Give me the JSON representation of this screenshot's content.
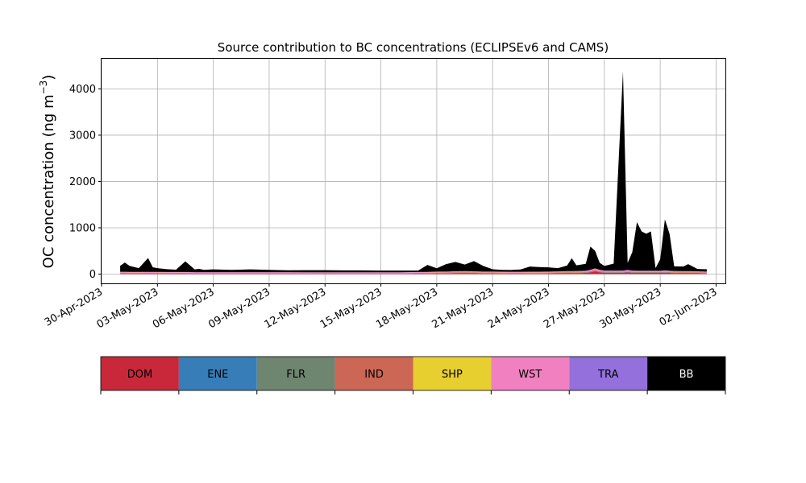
{
  "chart_data": {
    "type": "area",
    "title": "Source contribution to BC concentrations (ECLIPSEv6 and CAMS)",
    "ylabel": "OC concentration (ng m",
    "ylabel_sup": "−3",
    "ylabel_close": ")",
    "xlabel": "",
    "x_axis_type": "date",
    "xlim": [
      "2023-04-30T00:00",
      "2023-06-02T12:00"
    ],
    "ylim": [
      -200,
      4650
    ],
    "grid": true,
    "yticks": [
      0,
      1000,
      2000,
      3000,
      4000
    ],
    "ytick_labels": [
      "0",
      "1000",
      "2000",
      "3000",
      "4000"
    ],
    "xticks": [
      "2023-04-30",
      "2023-05-03",
      "2023-05-06",
      "2023-05-09",
      "2023-05-12",
      "2023-05-15",
      "2023-05-18",
      "2023-05-21",
      "2023-05-24",
      "2023-05-27",
      "2023-05-30",
      "2023-06-02"
    ],
    "xtick_labels": [
      "30-Apr-2023",
      "03-May-2023",
      "06-May-2023",
      "09-May-2023",
      "12-May-2023",
      "15-May-2023",
      "18-May-2023",
      "21-May-2023",
      "24-May-2023",
      "27-May-2023",
      "30-May-2023",
      "02-Jun-2023"
    ],
    "x": [
      "2023-05-01T00:00",
      "2023-05-01T06:00",
      "2023-05-01T12:00",
      "2023-05-02T00:00",
      "2023-05-02T12:00",
      "2023-05-02T18:00",
      "2023-05-03T00:00",
      "2023-05-03T12:00",
      "2023-05-04T00:00",
      "2023-05-04T12:00",
      "2023-05-05T00:00",
      "2023-05-05T06:00",
      "2023-05-05T12:00",
      "2023-05-06T00:00",
      "2023-05-07T00:00",
      "2023-05-08T00:00",
      "2023-05-09T00:00",
      "2023-05-10T00:00",
      "2023-05-11T00:00",
      "2023-05-12T00:00",
      "2023-05-13T00:00",
      "2023-05-14T00:00",
      "2023-05-15T00:00",
      "2023-05-16T00:00",
      "2023-05-17T00:00",
      "2023-05-17T12:00",
      "2023-05-18T00:00",
      "2023-05-18T12:00",
      "2023-05-19T00:00",
      "2023-05-19T12:00",
      "2023-05-20T00:00",
      "2023-05-20T12:00",
      "2023-05-21T00:00",
      "2023-05-21T12:00",
      "2023-05-22T00:00",
      "2023-05-22T12:00",
      "2023-05-23T00:00",
      "2023-05-23T12:00",
      "2023-05-24T00:00",
      "2023-05-24T12:00",
      "2023-05-25T00:00",
      "2023-05-25T06:00",
      "2023-05-25T12:00",
      "2023-05-26T00:00",
      "2023-05-26T06:00",
      "2023-05-26T12:00",
      "2023-05-26T18:00",
      "2023-05-27T00:00",
      "2023-05-27T12:00",
      "2023-05-28T00:00",
      "2023-05-28T06:00",
      "2023-05-28T12:00",
      "2023-05-28T18:00",
      "2023-05-29T00:00",
      "2023-05-29T06:00",
      "2023-05-29T12:00",
      "2023-05-29T18:00",
      "2023-05-30T00:00",
      "2023-05-30T06:00",
      "2023-05-30T12:00",
      "2023-05-30T18:00",
      "2023-05-31T00:00",
      "2023-05-31T06:00",
      "2023-05-31T12:00",
      "2023-06-01T00:00",
      "2023-06-01T12:00"
    ],
    "series": [
      {
        "name": "DOM",
        "color": "#c8283a",
        "values": [
          15,
          15,
          14,
          14,
          13,
          13,
          14,
          12,
          12,
          12,
          11,
          11,
          11,
          11,
          11,
          11,
          11,
          11,
          10,
          10,
          10,
          10,
          10,
          10,
          12,
          14,
          16,
          15,
          18,
          20,
          18,
          16,
          15,
          14,
          13,
          13,
          14,
          14,
          16,
          18,
          20,
          20,
          22,
          25,
          40,
          60,
          40,
          30,
          30,
          30,
          40,
          30,
          25,
          25,
          25,
          25,
          25,
          25,
          30,
          25,
          22,
          20,
          20,
          20,
          18,
          15
        ]
      },
      {
        "name": "ENE",
        "color": "#377eb8",
        "values": [
          5,
          5,
          5,
          5,
          5,
          5,
          5,
          5,
          5,
          5,
          4,
          4,
          4,
          4,
          4,
          4,
          4,
          4,
          4,
          4,
          4,
          4,
          4,
          4,
          4,
          4,
          5,
          5,
          5,
          5,
          5,
          5,
          5,
          5,
          5,
          5,
          5,
          5,
          5,
          5,
          5,
          5,
          5,
          5,
          5,
          5,
          5,
          5,
          5,
          5,
          5,
          5,
          5,
          5,
          5,
          5,
          5,
          5,
          5,
          5,
          5,
          5,
          5,
          5,
          5,
          5
        ]
      },
      {
        "name": "FLR",
        "color": "#6e8570",
        "values": [
          2,
          2,
          2,
          2,
          2,
          2,
          2,
          2,
          2,
          2,
          2,
          2,
          2,
          2,
          2,
          2,
          2,
          2,
          2,
          2,
          2,
          2,
          2,
          2,
          2,
          2,
          2,
          2,
          2,
          2,
          2,
          2,
          2,
          2,
          2,
          2,
          2,
          2,
          2,
          2,
          2,
          2,
          2,
          2,
          2,
          2,
          2,
          2,
          2,
          2,
          2,
          2,
          2,
          2,
          2,
          2,
          2,
          2,
          2,
          2,
          2,
          2,
          2,
          2,
          2,
          2
        ]
      },
      {
        "name": "IND",
        "color": "#cc6655",
        "values": [
          8,
          8,
          8,
          8,
          8,
          8,
          8,
          8,
          8,
          8,
          7,
          7,
          7,
          7,
          7,
          7,
          7,
          7,
          7,
          7,
          7,
          7,
          7,
          7,
          8,
          8,
          10,
          10,
          12,
          12,
          10,
          10,
          10,
          10,
          10,
          10,
          10,
          10,
          10,
          10,
          12,
          12,
          12,
          12,
          15,
          20,
          15,
          12,
          12,
          12,
          12,
          12,
          12,
          12,
          12,
          12,
          12,
          12,
          12,
          12,
          12,
          12,
          12,
          12,
          12,
          12
        ]
      },
      {
        "name": "SHP",
        "color": "#e8cf30",
        "values": [
          3,
          3,
          3,
          3,
          3,
          3,
          3,
          3,
          3,
          3,
          3,
          3,
          3,
          3,
          3,
          3,
          3,
          3,
          3,
          3,
          3,
          3,
          3,
          3,
          3,
          3,
          3,
          3,
          3,
          3,
          3,
          3,
          3,
          3,
          3,
          3,
          3,
          3,
          3,
          3,
          3,
          3,
          3,
          3,
          3,
          3,
          3,
          3,
          3,
          3,
          3,
          3,
          3,
          3,
          3,
          3,
          3,
          3,
          3,
          3,
          3,
          3,
          3,
          3,
          3,
          3
        ]
      },
      {
        "name": "WST",
        "color": "#f080c0",
        "values": [
          12,
          12,
          12,
          12,
          12,
          12,
          12,
          12,
          12,
          12,
          11,
          11,
          11,
          11,
          11,
          11,
          11,
          11,
          10,
          10,
          10,
          10,
          10,
          10,
          12,
          12,
          15,
          15,
          18,
          20,
          18,
          15,
          15,
          14,
          13,
          13,
          14,
          14,
          15,
          16,
          18,
          18,
          20,
          20,
          25,
          30,
          25,
          20,
          20,
          20,
          25,
          20,
          20,
          20,
          20,
          20,
          20,
          20,
          25,
          20,
          20,
          18,
          18,
          18,
          16,
          14
        ]
      },
      {
        "name": "TRA",
        "color": "#9370db",
        "values": [
          4,
          4,
          4,
          4,
          4,
          4,
          4,
          4,
          4,
          4,
          4,
          4,
          4,
          4,
          4,
          4,
          4,
          4,
          4,
          4,
          4,
          4,
          4,
          4,
          4,
          4,
          4,
          4,
          4,
          4,
          4,
          4,
          4,
          4,
          4,
          4,
          4,
          4,
          4,
          4,
          4,
          4,
          4,
          4,
          4,
          4,
          4,
          4,
          4,
          4,
          4,
          4,
          4,
          4,
          4,
          4,
          4,
          4,
          4,
          4,
          4,
          4,
          4,
          4,
          4,
          4
        ]
      },
      {
        "name": "BB",
        "color": "#000000",
        "values": [
          130,
          200,
          130,
          80,
          300,
          100,
          80,
          60,
          50,
          230,
          60,
          70,
          50,
          60,
          50,
          60,
          50,
          40,
          45,
          45,
          40,
          40,
          35,
          35,
          30,
          150,
          70,
          160,
          200,
          140,
          220,
          120,
          50,
          40,
          40,
          50,
          110,
          100,
          90,
          70,
          120,
          280,
          120,
          150,
          500,
          380,
          150,
          100,
          150,
          4300,
          150,
          400,
          1050,
          850,
          800,
          850,
          60,
          250,
          1100,
          800,
          100,
          100,
          100,
          150,
          50,
          50
        ]
      }
    ]
  },
  "legend": {
    "items": [
      {
        "label": "DOM",
        "color": "#c8283a",
        "text_color": "#000000"
      },
      {
        "label": "ENE",
        "color": "#377eb8",
        "text_color": "#000000"
      },
      {
        "label": "FLR",
        "color": "#6e8570",
        "text_color": "#000000"
      },
      {
        "label": "IND",
        "color": "#cc6655",
        "text_color": "#000000"
      },
      {
        "label": "SHP",
        "color": "#e8cf30",
        "text_color": "#000000"
      },
      {
        "label": "WST",
        "color": "#f080c0",
        "text_color": "#000000"
      },
      {
        "label": "TRA",
        "color": "#9370db",
        "text_color": "#000000"
      },
      {
        "label": "BB",
        "color": "#000000",
        "text_color": "#ffffff"
      }
    ]
  }
}
